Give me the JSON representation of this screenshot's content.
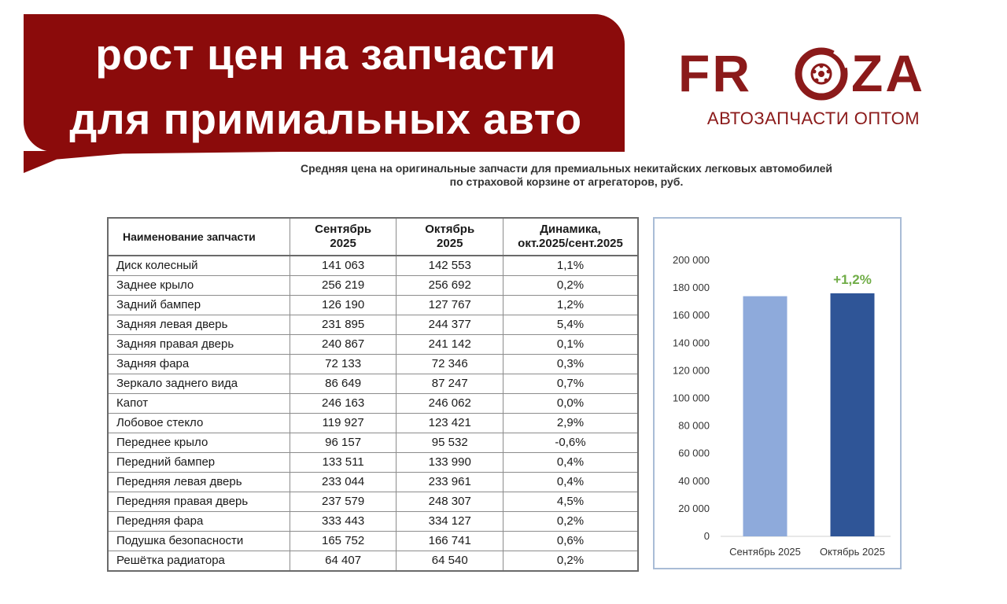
{
  "banner": {
    "line1": "рост цен на запчасти",
    "line2": "для примиальных авто"
  },
  "logo": {
    "left": "FR",
    "right": "ZA",
    "subtitle": "АВТОЗАПЧАСТИ ОПТОМ"
  },
  "title": {
    "line1": "Средняя цена на оригинальные запчасти для премиальных некитайских легковых автомобилей",
    "line2": "по страховой корзине от агрегаторов, руб."
  },
  "table": {
    "headers": [
      [
        "Наименование запчасти"
      ],
      [
        "Сентябрь",
        "2025"
      ],
      [
        "Октябрь",
        "2025"
      ],
      [
        "Динамика,",
        "окт.2025/сент.2025"
      ]
    ],
    "rows": [
      [
        "Диск колесный",
        "141 063",
        "142 553",
        "1,1%"
      ],
      [
        "Заднее крыло",
        "256 219",
        "256 692",
        "0,2%"
      ],
      [
        "Задний бампер",
        "126 190",
        "127 767",
        "1,2%"
      ],
      [
        "Задняя левая дверь",
        "231 895",
        "244 377",
        "5,4%"
      ],
      [
        "Задняя правая дверь",
        "240 867",
        "241 142",
        "0,1%"
      ],
      [
        "Задняя фара",
        "72 133",
        "72 346",
        "0,3%"
      ],
      [
        "Зеркало заднего вида",
        "86 649",
        "87 247",
        "0,7%"
      ],
      [
        "Капот",
        "246 163",
        "246 062",
        "0,0%"
      ],
      [
        "Лобовое стекло",
        "119 927",
        "123 421",
        "2,9%"
      ],
      [
        "Переднее крыло",
        "96 157",
        "95 532",
        "-0,6%"
      ],
      [
        "Передний бампер",
        "133 511",
        "133 990",
        "0,4%"
      ],
      [
        "Передняя левая дверь",
        "233 044",
        "233 961",
        "0,4%"
      ],
      [
        "Передняя правая дверь",
        "237 579",
        "248 307",
        "4,5%"
      ],
      [
        "Передняя фара",
        "333 443",
        "334 127",
        "0,2%"
      ],
      [
        "Подушка безопасности",
        "165 752",
        "166 741",
        "0,6%"
      ],
      [
        "Решётка радиатора",
        "64 407",
        "64 540",
        "0,2%"
      ]
    ]
  },
  "chart_data": {
    "type": "bar",
    "categories": [
      "Сентябрь 2025",
      "Октябрь 2025"
    ],
    "values": [
      174000,
      176100
    ],
    "ylim": [
      0,
      200000
    ],
    "yticks": [
      "0",
      "20 000",
      "40 000",
      "60 000",
      "80 000",
      "100 000",
      "120 000",
      "140 000",
      "160 000",
      "180 000",
      "200 000"
    ],
    "annotation": "+1,2%",
    "grid": false,
    "colors": [
      "#8eaadb",
      "#2f5597"
    ],
    "annotation_color": "#70ad47"
  },
  "colors": {
    "banner": "#8b0b0b",
    "logo": "#8b1a1a"
  },
  "icons": {
    "logo_wheel": "brake-disc-icon"
  }
}
